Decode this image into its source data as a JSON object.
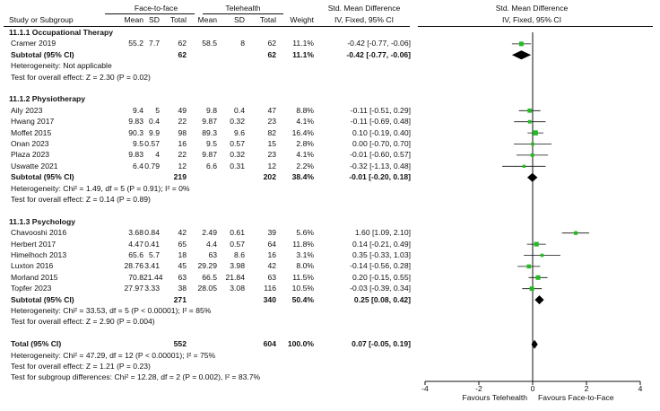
{
  "header": {
    "group1": "Face-to-face",
    "group2": "Telehealth",
    "smd_title": "Std. Mean Difference",
    "smd_sub": "IV, Fixed, 95% CI",
    "plot_title": "Std. Mean Difference",
    "plot_sub": "IV, Fixed, 95% CI",
    "cols": {
      "study": "Study or Subgroup",
      "mean1": "Mean",
      "sd1": "SD",
      "total1": "Total",
      "mean2": "Mean",
      "sd2": "SD",
      "total2": "Total",
      "weight": "Weight"
    }
  },
  "groups": [
    {
      "title": "11.1.1 Occupational Therapy",
      "studies": [
        {
          "name": "Cramer 2019",
          "m1": "55.2",
          "sd1": "7.7",
          "n1": "62",
          "m2": "58.5",
          "sd2": "8",
          "n2": "62",
          "w": "11.1%",
          "ci": "-0.42 [-0.77, -0.06]"
        }
      ],
      "subtotal": {
        "label": "Subtotal (95% CI)",
        "n1": "62",
        "n2": "62",
        "w": "11.1%",
        "ci": "-0.42 [-0.77, -0.06]"
      },
      "het": "Heterogeneity: Not applicable",
      "effect": "Test for overall effect: Z = 2.30 (P = 0.02)"
    },
    {
      "title": "11.1.2 Physiotherapy",
      "studies": [
        {
          "name": "Aily 2023",
          "m1": "9.4",
          "sd1": "5",
          "n1": "49",
          "m2": "9.8",
          "sd2": "0.4",
          "n2": "47",
          "w": "8.8%",
          "ci": "-0.11 [-0.51, 0.29]"
        },
        {
          "name": "Hwang 2017",
          "m1": "9.83",
          "sd1": "0.4",
          "n1": "22",
          "m2": "9.87",
          "sd2": "0.32",
          "n2": "23",
          "w": "4.1%",
          "ci": "-0.11 [-0.69, 0.48]"
        },
        {
          "name": "Moffet 2015",
          "m1": "90.3",
          "sd1": "9.9",
          "n1": "98",
          "m2": "89.3",
          "sd2": "9.6",
          "n2": "82",
          "w": "16.4%",
          "ci": "0.10 [-0.19, 0.40]"
        },
        {
          "name": "Onan 2023",
          "m1": "9.5",
          "sd1": "0.57",
          "n1": "16",
          "m2": "9.5",
          "sd2": "0.57",
          "n2": "15",
          "w": "2.8%",
          "ci": "0.00 [-0.70, 0.70]"
        },
        {
          "name": "Plaza 2023",
          "m1": "9.83",
          "sd1": "4",
          "n1": "22",
          "m2": "9.87",
          "sd2": "0.32",
          "n2": "23",
          "w": "4.1%",
          "ci": "-0.01 [-0.60, 0.57]"
        },
        {
          "name": "Uswatte 2021",
          "m1": "6.4",
          "sd1": "0.79",
          "n1": "12",
          "m2": "6.6",
          "sd2": "0.31",
          "n2": "12",
          "w": "2.2%",
          "ci": "-0.32 [-1.13, 0.48]"
        }
      ],
      "subtotal": {
        "label": "Subtotal (95% CI)",
        "n1": "219",
        "n2": "202",
        "w": "38.4%",
        "ci": "-0.01 [-0.20, 0.18]"
      },
      "het": "Heterogeneity: Chi² = 1.49, df = 5 (P = 0.91); I² = 0%",
      "effect": "Test for overall effect: Z = 0.14 (P = 0.89)"
    },
    {
      "title": "11.1.3 Psychology",
      "studies": [
        {
          "name": "Chavooshi 2016",
          "m1": "3.68",
          "sd1": "0.84",
          "n1": "42",
          "m2": "2.49",
          "sd2": "0.61",
          "n2": "39",
          "w": "5.6%",
          "ci": "1.60 [1.09, 2.10]"
        },
        {
          "name": "Herbert 2017",
          "m1": "4.47",
          "sd1": "0.41",
          "n1": "65",
          "m2": "4.4",
          "sd2": "0.57",
          "n2": "64",
          "w": "11.8%",
          "ci": "0.14 [-0.21, 0.49]"
        },
        {
          "name": "Himelhoch 2013",
          "m1": "65.6",
          "sd1": "5.7",
          "n1": "18",
          "m2": "63",
          "sd2": "8.6",
          "n2": "16",
          "w": "3.1%",
          "ci": "0.35 [-0.33, 1.03]"
        },
        {
          "name": "Luxton 2016",
          "m1": "28.76",
          "sd1": "3.41",
          "n1": "45",
          "m2": "29.29",
          "sd2": "3.98",
          "n2": "42",
          "w": "8.0%",
          "ci": "-0.14 [-0.56, 0.28]"
        },
        {
          "name": "Morland 2015",
          "m1": "70.8",
          "sd1": "21.44",
          "n1": "63",
          "m2": "66.5",
          "sd2": "21.84",
          "n2": "63",
          "w": "11.5%",
          "ci": "0.20 [-0.15, 0.55]"
        },
        {
          "name": "Topfer 2023",
          "m1": "27.97",
          "sd1": "3.33",
          "n1": "38",
          "m2": "28.05",
          "sd2": "3.08",
          "n2": "116",
          "w": "10.5%",
          "ci": "-0.03 [-0.39, 0.34]"
        }
      ],
      "subtotal": {
        "label": "Subtotal (95% CI)",
        "n1": "271",
        "n2": "340",
        "w": "50.4%",
        "ci": "0.25 [0.08, 0.42]"
      },
      "het": "Heterogeneity: Chi² = 33.53, df = 5 (P < 0.00001); I² = 85%",
      "effect": "Test for overall effect: Z = 2.90 (P = 0.004)"
    }
  ],
  "total": {
    "label": "Total (95% CI)",
    "n1": "552",
    "n2": "604",
    "w": "100.0%",
    "ci": "0.07 [-0.05, 0.19]",
    "het": "Heterogeneity: Chi² = 47.29, df = 12 (P < 0.00001); I² = 75%",
    "effect": "Test for overall effect: Z = 1.21 (P = 0.23)",
    "subgroup": "Test for subgroup differences: Chi² = 12.28, df = 2 (P = 0.002), I² = 83.7%"
  },
  "axis": {
    "ticks": [
      "-4",
      "-2",
      "0",
      "2",
      "4"
    ],
    "left_label": "Favours Telehealth",
    "right_label": "Favours Face-to-Face"
  },
  "colors": {
    "marker": "#22bb22",
    "line": "#111111",
    "diamond": "#000000"
  },
  "chart_data": {
    "type": "forest",
    "title": "Std. Mean Difference IV, Fixed, 95% CI",
    "xlim": [
      -4,
      4
    ],
    "xticks": [
      -4,
      -2,
      0,
      2,
      4
    ],
    "xlabel_left": "Favours Telehealth",
    "xlabel_right": "Favours Face-to-Face",
    "studies": [
      {
        "name": "Cramer 2019",
        "est": -0.42,
        "lo": -0.77,
        "hi": -0.06,
        "weight": 11.1
      },
      {
        "name": "Aily 2023",
        "est": -0.11,
        "lo": -0.51,
        "hi": 0.29,
        "weight": 8.8
      },
      {
        "name": "Hwang 2017",
        "est": -0.11,
        "lo": -0.69,
        "hi": 0.48,
        "weight": 4.1
      },
      {
        "name": "Moffet 2015",
        "est": 0.1,
        "lo": -0.19,
        "hi": 0.4,
        "weight": 16.4
      },
      {
        "name": "Onan 2023",
        "est": 0.0,
        "lo": -0.7,
        "hi": 0.7,
        "weight": 2.8
      },
      {
        "name": "Plaza 2023",
        "est": -0.01,
        "lo": -0.6,
        "hi": 0.57,
        "weight": 4.1
      },
      {
        "name": "Uswatte 2021",
        "est": -0.32,
        "lo": -1.13,
        "hi": 0.48,
        "weight": 2.2
      },
      {
        "name": "Chavooshi 2016",
        "est": 1.6,
        "lo": 1.09,
        "hi": 2.1,
        "weight": 5.6
      },
      {
        "name": "Herbert 2017",
        "est": 0.14,
        "lo": -0.21,
        "hi": 0.49,
        "weight": 11.8
      },
      {
        "name": "Himelhoch 2013",
        "est": 0.35,
        "lo": -0.33,
        "hi": 1.03,
        "weight": 3.1
      },
      {
        "name": "Luxton 2016",
        "est": -0.14,
        "lo": -0.56,
        "hi": 0.28,
        "weight": 8.0
      },
      {
        "name": "Morland 2015",
        "est": 0.2,
        "lo": -0.15,
        "hi": 0.55,
        "weight": 11.5
      },
      {
        "name": "Topfer 2023",
        "est": -0.03,
        "lo": -0.39,
        "hi": 0.34,
        "weight": 10.5
      }
    ],
    "subtotals": [
      {
        "name": "11.1.1 Occupational Therapy",
        "est": -0.42,
        "lo": -0.77,
        "hi": -0.06
      },
      {
        "name": "11.1.2 Physiotherapy",
        "est": -0.01,
        "lo": -0.2,
        "hi": 0.18
      },
      {
        "name": "11.1.3 Psychology",
        "est": 0.25,
        "lo": 0.08,
        "hi": 0.42
      }
    ],
    "total": {
      "name": "Total (95% CI)",
      "est": 0.07,
      "lo": -0.05,
      "hi": 0.19
    }
  }
}
